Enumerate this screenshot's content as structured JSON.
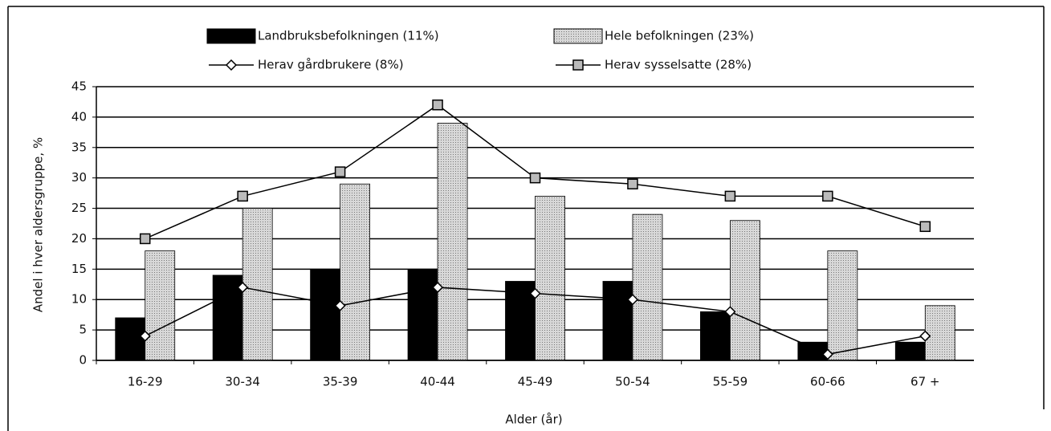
{
  "chart_data": {
    "type": "bar",
    "xlabel": "Alder (år)",
    "ylabel": "Andel i hver aldersgruppe, %",
    "categories": [
      "16-29",
      "30-34",
      "35-39",
      "40-44",
      "45-49",
      "50-54",
      "55-59",
      "60-66",
      "67 +"
    ],
    "series": [
      {
        "name": "Landbruksbefolkningen (11%)",
        "type": "bar",
        "color": "#000000",
        "values": [
          7,
          14,
          15,
          15,
          13,
          13,
          8,
          3,
          3
        ]
      },
      {
        "name": "Hele befolkningen (23%)",
        "type": "bar",
        "color": "#c8c8c8",
        "values": [
          18,
          25,
          29,
          39,
          27,
          24,
          23,
          18,
          9
        ]
      },
      {
        "name": "Herav gårdbrukere (8%)",
        "type": "line",
        "color": "#000000",
        "values": [
          4,
          12,
          9,
          12,
          11,
          10,
          8,
          1,
          4
        ]
      },
      {
        "name": "Herav sysselsatte (28%)",
        "type": "line",
        "color": "#000000",
        "values": [
          20,
          27,
          31,
          42,
          30,
          29,
          27,
          27,
          22
        ]
      }
    ],
    "ylim": [
      0,
      45
    ],
    "yticks": [
      0,
      5,
      10,
      15,
      20,
      25,
      30,
      35,
      40,
      45
    ],
    "grid": true
  }
}
